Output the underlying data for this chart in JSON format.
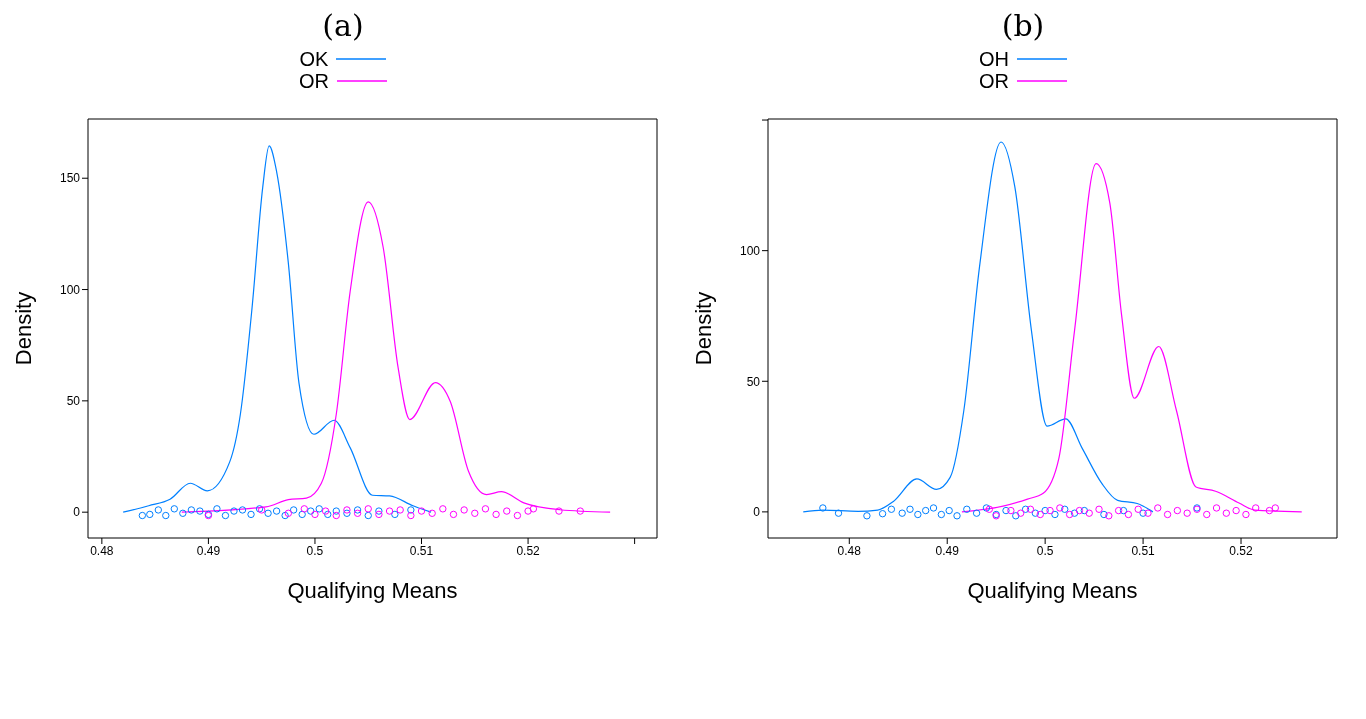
{
  "chart_data": [
    {
      "type": "line",
      "title": "(a)",
      "xlabel": "Qualifying Means",
      "ylabel": "Density",
      "legend": "top",
      "grid": false,
      "xlim": [
        0.4787,
        0.5321
      ],
      "xticks": [
        0.48,
        0.49,
        0.5,
        0.51,
        0.52,
        {
          "value": 0.53,
          "label": null
        }
      ],
      "ylim": [
        -11.6,
        176.6
      ],
      "yticks": [
        0,
        50,
        100,
        150
      ],
      "series": [
        {
          "name": "OK",
          "color": "#0080ff",
          "x": [
            0.482,
            0.4844,
            0.4864,
            0.4883,
            0.4899,
            0.492,
            0.493,
            0.4941,
            0.4951,
            0.4957,
            0.4964,
            0.4975,
            0.4985,
            0.4999,
            0.5018,
            0.5033,
            0.5054,
            0.507,
            0.5092,
            0.5109
          ],
          "values": [
            0,
            2.9,
            5.8,
            13,
            9.6,
            22.6,
            44,
            92,
            146,
            164.5,
            153,
            112,
            58,
            35,
            41.3,
            29,
            7.6,
            7.3,
            2.9,
            0
          ]
        },
        {
          "name": "OR",
          "color": "#ff00ff",
          "x": [
            0.4875,
            0.4954,
            0.4975,
            0.4992,
            0.5006,
            0.502,
            0.5033,
            0.505,
            0.5064,
            0.5078,
            0.5089,
            0.5113,
            0.5127,
            0.5144,
            0.5161,
            0.5175,
            0.5196,
            0.523,
            0.5277
          ],
          "values": [
            0,
            2.4,
            5.6,
            6.3,
            13,
            44,
            99,
            139.4,
            119,
            65,
            41.6,
            58.2,
            49.7,
            18.5,
            7.9,
            9.2,
            4.2,
            1.1,
            0
          ]
        },
        {
          "type": "scatter",
          "color": "#0080ff",
          "marker": "circle",
          "x": [
            0.4838,
            0.4845,
            0.4853,
            0.486,
            0.4868,
            0.4876,
            0.4884,
            0.4892,
            0.49,
            0.4908,
            0.4916,
            0.4924,
            0.4932,
            0.494,
            0.4948,
            0.4956,
            0.4964,
            0.4972,
            0.498,
            0.4988,
            0.4996,
            0.5004,
            0.5012,
            0.502,
            0.503,
            0.504,
            0.505,
            0.506,
            0.5075,
            0.509
          ],
          "values": [
            -1.5,
            -1,
            1,
            -1.5,
            1.5,
            -0.5,
            1,
            0.5,
            -1,
            1.5,
            -1.5,
            0.5,
            1,
            -1,
            1.5,
            -0.5,
            0.5,
            -1.5,
            1,
            -1,
            0.5,
            1.5,
            -1,
            0.5,
            -0.5,
            1,
            -1.5,
            0.5,
            -1,
            1
          ]
        },
        {
          "type": "scatter",
          "color": "#ff00ff",
          "marker": "circle",
          "x": [
            0.49,
            0.495,
            0.4975,
            0.499,
            0.5,
            0.501,
            0.502,
            0.503,
            0.504,
            0.505,
            0.506,
            0.507,
            0.508,
            0.509,
            0.51,
            0.511,
            0.512,
            0.513,
            0.514,
            0.515,
            0.516,
            0.517,
            0.518,
            0.519,
            0.52,
            0.5205,
            0.5229,
            0.5249
          ],
          "values": [
            -1.5,
            1,
            -0.5,
            1.5,
            -1,
            0.5,
            -1.5,
            1,
            -0.5,
            1.5,
            -1,
            0.5,
            1,
            -1.5,
            0.5,
            -0.5,
            1.5,
            -1,
            1,
            -0.5,
            1.5,
            -1,
            0.5,
            -1.5,
            0.5,
            1.5,
            0.5,
            0.5
          ]
        }
      ]
    },
    {
      "type": "line",
      "title": "(b)",
      "xlabel": "Qualifying Means",
      "ylabel": "Density",
      "legend": "top",
      "grid": false,
      "xlim": [
        0.4717,
        0.5298
      ],
      "xticks": [
        0.48,
        0.49,
        0.5,
        0.51,
        0.52
      ],
      "ylim": [
        -10,
        150.4
      ],
      "yticks": [
        0,
        50,
        100,
        {
          "value": 150,
          "label": null
        }
      ],
      "series": [
        {
          "name": "OH",
          "color": "#0080ff",
          "x": [
            0.4753,
            0.4773,
            0.4809,
            0.4829,
            0.4845,
            0.4869,
            0.4889,
            0.4903,
            0.4917,
            0.4933,
            0.4955,
            0.4969,
            0.4986,
            0.5002,
            0.5021,
            0.5038,
            0.5058,
            0.5074,
            0.5094,
            0.511
          ],
          "values": [
            0,
            0.7,
            0.2,
            0.7,
            4,
            12.6,
            8.6,
            13.2,
            38.9,
            93.9,
            141.6,
            124.5,
            69.4,
            32.8,
            35.6,
            24.2,
            10.8,
            4.4,
            3.2,
            0
          ]
        },
        {
          "name": "OR",
          "color": "#ff00ff",
          "x": [
            0.4915,
            0.4957,
            0.4982,
            0.4998,
            0.5014,
            0.503,
            0.5052,
            0.5066,
            0.5078,
            0.5091,
            0.5116,
            0.5134,
            0.5154,
            0.5174,
            0.5198,
            0.5214,
            0.5262
          ],
          "values": [
            0,
            2.2,
            4.9,
            7.1,
            20.5,
            69.4,
            133.3,
            118.3,
            75.5,
            43.5,
            63.3,
            38.9,
            9.5,
            7.9,
            3.4,
            0.7,
            0
          ]
        },
        {
          "type": "scatter",
          "color": "#0080ff",
          "marker": "circle",
          "x": [
            0.4773,
            0.4789,
            0.4818,
            0.4834,
            0.4843,
            0.4854,
            0.4862,
            0.487,
            0.4878,
            0.4886,
            0.4894,
            0.4902,
            0.491,
            0.492,
            0.493,
            0.494,
            0.495,
            0.496,
            0.497,
            0.498,
            0.499,
            0.5,
            0.501,
            0.502,
            0.503,
            0.504,
            0.506,
            0.508,
            0.51,
            0.5155
          ],
          "values": [
            1.5,
            -0.5,
            -1.5,
            -0.7,
            1,
            -0.5,
            1,
            -1,
            0.5,
            1.5,
            -1,
            0.5,
            -1.5,
            1,
            -0.5,
            1.5,
            -1,
            0.5,
            -1.5,
            1,
            -0.5,
            0.5,
            -1,
            1,
            -0.5,
            0.5,
            -1,
            0.5,
            -0.5,
            1.5
          ]
        },
        {
          "type": "scatter",
          "color": "#ff00ff",
          "marker": "circle",
          "x": [
            0.4943,
            0.495,
            0.4965,
            0.4975,
            0.4985,
            0.4995,
            0.5005,
            0.5015,
            0.5025,
            0.5035,
            0.5045,
            0.5055,
            0.5065,
            0.5075,
            0.5085,
            0.5095,
            0.5105,
            0.5115,
            0.5125,
            0.5135,
            0.5145,
            0.5155,
            0.5165,
            0.5175,
            0.5185,
            0.5195,
            0.5205,
            0.5215,
            0.5229,
            0.5235
          ],
          "values": [
            1,
            -1.5,
            0.5,
            -0.5,
            1,
            -1,
            0.5,
            1.5,
            -1,
            0.5,
            -0.5,
            1,
            -1.5,
            0.5,
            -1,
            1,
            -0.5,
            1.5,
            -1,
            0.5,
            -0.5,
            1,
            -1,
            1.5,
            -0.5,
            0.5,
            -1,
            1.5,
            0.5,
            1.5
          ]
        }
      ]
    }
  ]
}
